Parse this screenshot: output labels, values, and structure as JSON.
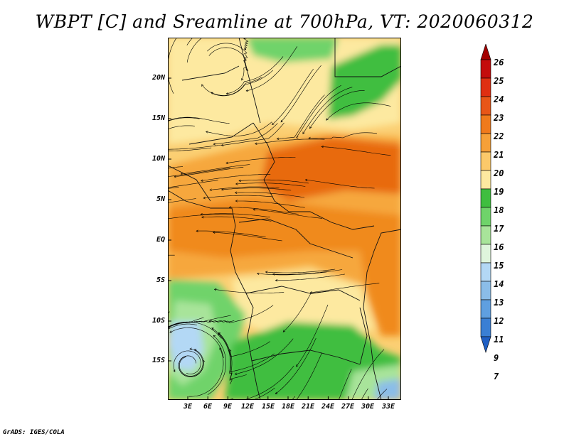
{
  "title": "WBPT [C] and Sreamline at 700hPa, VT: 2020060312",
  "footer": "GrADS: IGES/COLA",
  "map": {
    "lat_labels": [
      "20N",
      "15N",
      "10N",
      "5N",
      "EQ",
      "5S",
      "10S",
      "15S"
    ],
    "lon_labels": [
      "3E",
      "6E",
      "9E",
      "12E",
      "15E",
      "18E",
      "21E",
      "24E",
      "27E",
      "30E",
      "33E"
    ],
    "colors": {
      "c19": "#fde9a0",
      "c20": "#fbcf73",
      "c21": "#f6a73c",
      "c22": "#f08a1e",
      "c23": "#e86a0f",
      "c18": "#3fbe3f",
      "c17": "#6fd36a",
      "c16": "#a8e49a",
      "c15": "#dff5dc",
      "c14": "#b3d8f5",
      "c13": "#8bbde8",
      "c12": "#5f9fe0",
      "c11": "#3a7fd4"
    }
  },
  "colorbar": {
    "labels": [
      "26",
      "25",
      "24",
      "23",
      "22",
      "21",
      "20",
      "19",
      "18",
      "17",
      "16",
      "15",
      "14",
      "13",
      "12",
      "11",
      "9",
      "7"
    ],
    "colors": [
      "#a30000",
      "#c40c0c",
      "#df2f12",
      "#e85618",
      "#f07a1c",
      "#f6a038",
      "#fbc96a",
      "#fde9a0",
      "#3fbe3f",
      "#6fd36a",
      "#a8e49a",
      "#dff5dc",
      "#b3d8f5",
      "#8bbde8",
      "#5f9fe0",
      "#3a7fd4",
      "#1f5fc4"
    ]
  }
}
